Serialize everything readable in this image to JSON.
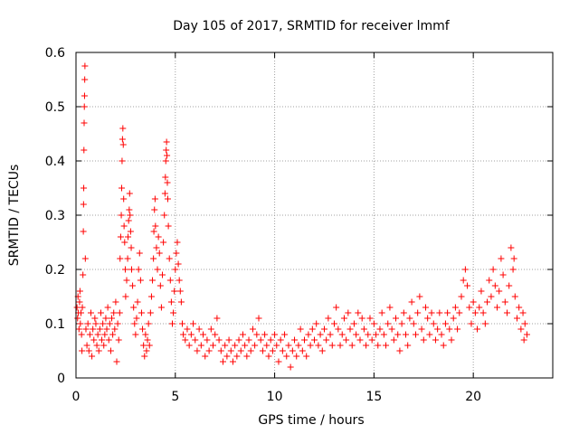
{
  "chart_data": {
    "type": "scatter",
    "title": "Day 105 of 2017, SRMTID for receiver lmmf",
    "xlabel": "GPS time / hours",
    "ylabel": "SRMTID / TECUs",
    "xlim": [
      0,
      24
    ],
    "ylim": [
      0,
      0.6
    ],
    "xticks": [
      "0",
      "5",
      "10",
      "15",
      "20"
    ],
    "yticks": [
      "0",
      "0.1",
      "0.2",
      "0.3",
      "0.4",
      "0.5",
      "0.6"
    ],
    "grid": true,
    "marker": "+",
    "colors": {
      "points": "#ff0000",
      "grid": "#a0a0a0",
      "axes": "#000000"
    },
    "series": [
      {
        "name": "SRMTID",
        "points": [
          [
            0.05,
            0.13
          ],
          [
            0.08,
            0.11
          ],
          [
            0.1,
            0.15
          ],
          [
            0.12,
            0.12
          ],
          [
            0.15,
            0.09
          ],
          [
            0.18,
            0.14
          ],
          [
            0.2,
            0.16
          ],
          [
            0.22,
            0.1
          ],
          [
            0.25,
            0.12
          ],
          [
            0.28,
            0.08
          ],
          [
            0.3,
            0.05
          ],
          [
            0.32,
            0.13
          ],
          [
            0.35,
            0.19
          ],
          [
            0.37,
            0.27
          ],
          [
            0.38,
            0.32
          ],
          [
            0.39,
            0.35
          ],
          [
            0.4,
            0.42
          ],
          [
            0.41,
            0.47
          ],
          [
            0.42,
            0.5
          ],
          [
            0.43,
            0.52
          ],
          [
            0.44,
            0.55
          ],
          [
            0.45,
            0.575
          ],
          [
            0.47,
            0.22
          ],
          [
            0.5,
            0.09
          ],
          [
            0.55,
            0.06
          ],
          [
            0.6,
            0.1
          ],
          [
            0.65,
            0.05
          ],
          [
            0.7,
            0.08
          ],
          [
            0.75,
            0.12
          ],
          [
            0.8,
            0.04
          ],
          [
            0.85,
            0.09
          ],
          [
            0.9,
            0.07
          ],
          [
            0.95,
            0.11
          ],
          [
            1.0,
            0.1
          ],
          [
            1.05,
            0.06
          ],
          [
            1.1,
            0.08
          ],
          [
            1.15,
            0.05
          ],
          [
            1.2,
            0.09
          ],
          [
            1.25,
            0.12
          ],
          [
            1.3,
            0.07
          ],
          [
            1.35,
            0.1
          ],
          [
            1.4,
            0.06
          ],
          [
            1.45,
            0.08
          ],
          [
            1.5,
            0.11
          ],
          [
            1.55,
            0.09
          ],
          [
            1.6,
            0.13
          ],
          [
            1.65,
            0.07
          ],
          [
            1.7,
            0.1
          ],
          [
            1.75,
            0.05
          ],
          [
            1.8,
            0.11
          ],
          [
            1.85,
            0.08
          ],
          [
            1.9,
            0.12
          ],
          [
            1.95,
            0.09
          ],
          [
            2.0,
            0.14
          ],
          [
            2.05,
            0.03
          ],
          [
            2.1,
            0.1
          ],
          [
            2.15,
            0.07
          ],
          [
            2.2,
            0.12
          ],
          [
            2.22,
            0.22
          ],
          [
            2.25,
            0.26
          ],
          [
            2.28,
            0.3
          ],
          [
            2.3,
            0.35
          ],
          [
            2.32,
            0.4
          ],
          [
            2.34,
            0.44
          ],
          [
            2.36,
            0.46
          ],
          [
            2.38,
            0.43
          ],
          [
            2.4,
            0.33
          ],
          [
            2.42,
            0.28
          ],
          [
            2.45,
            0.25
          ],
          [
            2.48,
            0.2
          ],
          [
            2.5,
            0.15
          ],
          [
            2.55,
            0.18
          ],
          [
            2.6,
            0.22
          ],
          [
            2.62,
            0.26
          ],
          [
            2.65,
            0.29
          ],
          [
            2.68,
            0.31
          ],
          [
            2.7,
            0.34
          ],
          [
            2.72,
            0.3
          ],
          [
            2.75,
            0.27
          ],
          [
            2.78,
            0.24
          ],
          [
            2.8,
            0.2
          ],
          [
            2.85,
            0.17
          ],
          [
            2.9,
            0.13
          ],
          [
            2.95,
            0.1
          ],
          [
            3.0,
            0.08
          ],
          [
            3.05,
            0.11
          ],
          [
            3.1,
            0.14
          ],
          [
            3.15,
            0.2
          ],
          [
            3.2,
            0.23
          ],
          [
            3.25,
            0.18
          ],
          [
            3.3,
            0.12
          ],
          [
            3.35,
            0.09
          ],
          [
            3.4,
            0.06
          ],
          [
            3.45,
            0.04
          ],
          [
            3.5,
            0.08
          ],
          [
            3.55,
            0.05
          ],
          [
            3.6,
            0.07
          ],
          [
            3.65,
            0.1
          ],
          [
            3.7,
            0.06
          ],
          [
            3.75,
            0.12
          ],
          [
            3.8,
            0.15
          ],
          [
            3.85,
            0.18
          ],
          [
            3.9,
            0.22
          ],
          [
            3.92,
            0.27
          ],
          [
            3.95,
            0.31
          ],
          [
            3.98,
            0.33
          ],
          [
            4.0,
            0.28
          ],
          [
            4.05,
            0.24
          ],
          [
            4.1,
            0.2
          ],
          [
            4.15,
            0.26
          ],
          [
            4.2,
            0.23
          ],
          [
            4.25,
            0.17
          ],
          [
            4.3,
            0.13
          ],
          [
            4.35,
            0.19
          ],
          [
            4.4,
            0.25
          ],
          [
            4.45,
            0.3
          ],
          [
            4.48,
            0.34
          ],
          [
            4.5,
            0.37
          ],
          [
            4.52,
            0.4
          ],
          [
            4.54,
            0.42
          ],
          [
            4.56,
            0.435
          ],
          [
            4.58,
            0.41
          ],
          [
            4.6,
            0.36
          ],
          [
            4.62,
            0.33
          ],
          [
            4.65,
            0.28
          ],
          [
            4.7,
            0.22
          ],
          [
            4.75,
            0.18
          ],
          [
            4.8,
            0.14
          ],
          [
            4.85,
            0.1
          ],
          [
            4.9,
            0.12
          ],
          [
            4.95,
            0.16
          ],
          [
            5.0,
            0.2
          ],
          [
            5.05,
            0.23
          ],
          [
            5.1,
            0.25
          ],
          [
            5.15,
            0.21
          ],
          [
            5.2,
            0.18
          ],
          [
            5.25,
            0.16
          ],
          [
            5.3,
            0.14
          ],
          [
            5.35,
            0.1
          ],
          [
            5.4,
            0.08
          ],
          [
            5.5,
            0.07
          ],
          [
            5.6,
            0.09
          ],
          [
            5.7,
            0.06
          ],
          [
            5.8,
            0.08
          ],
          [
            5.9,
            0.1
          ],
          [
            6.0,
            0.07
          ],
          [
            6.1,
            0.05
          ],
          [
            6.2,
            0.09
          ],
          [
            6.3,
            0.06
          ],
          [
            6.4,
            0.08
          ],
          [
            6.5,
            0.04
          ],
          [
            6.6,
            0.07
          ],
          [
            6.7,
            0.05
          ],
          [
            6.8,
            0.09
          ],
          [
            6.9,
            0.06
          ],
          [
            7.0,
            0.08
          ],
          [
            7.1,
            0.11
          ],
          [
            7.2,
            0.07
          ],
          [
            7.3,
            0.05
          ],
          [
            7.4,
            0.03
          ],
          [
            7.5,
            0.06
          ],
          [
            7.6,
            0.04
          ],
          [
            7.7,
            0.07
          ],
          [
            7.8,
            0.05
          ],
          [
            7.9,
            0.03
          ],
          [
            8.0,
            0.06
          ],
          [
            8.1,
            0.04
          ],
          [
            8.2,
            0.07
          ],
          [
            8.3,
            0.05
          ],
          [
            8.4,
            0.08
          ],
          [
            8.5,
            0.06
          ],
          [
            8.6,
            0.04
          ],
          [
            8.7,
            0.07
          ],
          [
            8.8,
            0.05
          ],
          [
            8.9,
            0.09
          ],
          [
            9.0,
            0.06
          ],
          [
            9.1,
            0.08
          ],
          [
            9.2,
            0.11
          ],
          [
            9.3,
            0.07
          ],
          [
            9.4,
            0.05
          ],
          [
            9.5,
            0.08
          ],
          [
            9.6,
            0.06
          ],
          [
            9.7,
            0.04
          ],
          [
            9.8,
            0.07
          ],
          [
            9.9,
            0.05
          ],
          [
            10.0,
            0.08
          ],
          [
            10.1,
            0.06
          ],
          [
            10.2,
            0.03
          ],
          [
            10.3,
            0.07
          ],
          [
            10.4,
            0.05
          ],
          [
            10.5,
            0.08
          ],
          [
            10.6,
            0.04
          ],
          [
            10.7,
            0.06
          ],
          [
            10.8,
            0.02
          ],
          [
            10.9,
            0.05
          ],
          [
            11.0,
            0.07
          ],
          [
            11.1,
            0.04
          ],
          [
            11.2,
            0.06
          ],
          [
            11.3,
            0.09
          ],
          [
            11.4,
            0.05
          ],
          [
            11.5,
            0.07
          ],
          [
            11.6,
            0.04
          ],
          [
            11.7,
            0.08
          ],
          [
            11.8,
            0.06
          ],
          [
            11.9,
            0.09
          ],
          [
            12.0,
            0.07
          ],
          [
            12.1,
            0.1
          ],
          [
            12.2,
            0.06
          ],
          [
            12.3,
            0.08
          ],
          [
            12.4,
            0.05
          ],
          [
            12.5,
            0.09
          ],
          [
            12.6,
            0.07
          ],
          [
            12.7,
            0.11
          ],
          [
            12.8,
            0.08
          ],
          [
            12.9,
            0.06
          ],
          [
            13.0,
            0.1
          ],
          [
            13.1,
            0.13
          ],
          [
            13.2,
            0.09
          ],
          [
            13.3,
            0.06
          ],
          [
            13.4,
            0.08
          ],
          [
            13.5,
            0.11
          ],
          [
            13.6,
            0.07
          ],
          [
            13.7,
            0.12
          ],
          [
            13.8,
            0.09
          ],
          [
            13.9,
            0.06
          ],
          [
            14.0,
            0.1
          ],
          [
            14.1,
            0.08
          ],
          [
            14.2,
            0.12
          ],
          [
            14.3,
            0.07
          ],
          [
            14.4,
            0.11
          ],
          [
            14.5,
            0.09
          ],
          [
            14.6,
            0.06
          ],
          [
            14.7,
            0.08
          ],
          [
            14.8,
            0.11
          ],
          [
            14.9,
            0.07
          ],
          [
            15.0,
            0.1
          ],
          [
            15.1,
            0.08
          ],
          [
            15.2,
            0.06
          ],
          [
            15.3,
            0.09
          ],
          [
            15.4,
            0.12
          ],
          [
            15.5,
            0.08
          ],
          [
            15.6,
            0.06
          ],
          [
            15.7,
            0.1
          ],
          [
            15.8,
            0.13
          ],
          [
            15.9,
            0.09
          ],
          [
            16.0,
            0.07
          ],
          [
            16.1,
            0.11
          ],
          [
            16.2,
            0.08
          ],
          [
            16.3,
            0.05
          ],
          [
            16.4,
            0.1
          ],
          [
            16.5,
            0.12
          ],
          [
            16.6,
            0.08
          ],
          [
            16.7,
            0.06
          ],
          [
            16.8,
            0.11
          ],
          [
            16.9,
            0.14
          ],
          [
            17.0,
            0.1
          ],
          [
            17.1,
            0.08
          ],
          [
            17.2,
            0.12
          ],
          [
            17.3,
            0.15
          ],
          [
            17.4,
            0.09
          ],
          [
            17.5,
            0.07
          ],
          [
            17.6,
            0.13
          ],
          [
            17.7,
            0.11
          ],
          [
            17.8,
            0.08
          ],
          [
            17.9,
            0.12
          ],
          [
            18.0,
            0.1
          ],
          [
            18.1,
            0.07
          ],
          [
            18.2,
            0.09
          ],
          [
            18.3,
            0.12
          ],
          [
            18.4,
            0.08
          ],
          [
            18.5,
            0.06
          ],
          [
            18.6,
            0.1
          ],
          [
            18.7,
            0.12
          ],
          [
            18.8,
            0.09
          ],
          [
            18.9,
            0.07
          ],
          [
            19.0,
            0.11
          ],
          [
            19.1,
            0.13
          ],
          [
            19.2,
            0.09
          ],
          [
            19.3,
            0.12
          ],
          [
            19.4,
            0.15
          ],
          [
            19.5,
            0.18
          ],
          [
            19.6,
            0.2
          ],
          [
            19.7,
            0.17
          ],
          [
            19.8,
            0.13
          ],
          [
            19.9,
            0.1
          ],
          [
            20.0,
            0.14
          ],
          [
            20.1,
            0.12
          ],
          [
            20.2,
            0.09
          ],
          [
            20.3,
            0.13
          ],
          [
            20.4,
            0.16
          ],
          [
            20.5,
            0.12
          ],
          [
            20.6,
            0.1
          ],
          [
            20.7,
            0.14
          ],
          [
            20.8,
            0.18
          ],
          [
            20.9,
            0.15
          ],
          [
            21.0,
            0.2
          ],
          [
            21.1,
            0.17
          ],
          [
            21.2,
            0.13
          ],
          [
            21.3,
            0.16
          ],
          [
            21.4,
            0.22
          ],
          [
            21.5,
            0.19
          ],
          [
            21.6,
            0.14
          ],
          [
            21.7,
            0.12
          ],
          [
            21.8,
            0.17
          ],
          [
            21.9,
            0.24
          ],
          [
            22.0,
            0.2
          ],
          [
            22.05,
            0.22
          ],
          [
            22.1,
            0.15
          ],
          [
            22.2,
            0.11
          ],
          [
            22.3,
            0.13
          ],
          [
            22.4,
            0.09
          ],
          [
            22.5,
            0.12
          ],
          [
            22.55,
            0.07
          ],
          [
            22.6,
            0.1
          ],
          [
            22.7,
            0.08
          ]
        ]
      }
    ]
  }
}
